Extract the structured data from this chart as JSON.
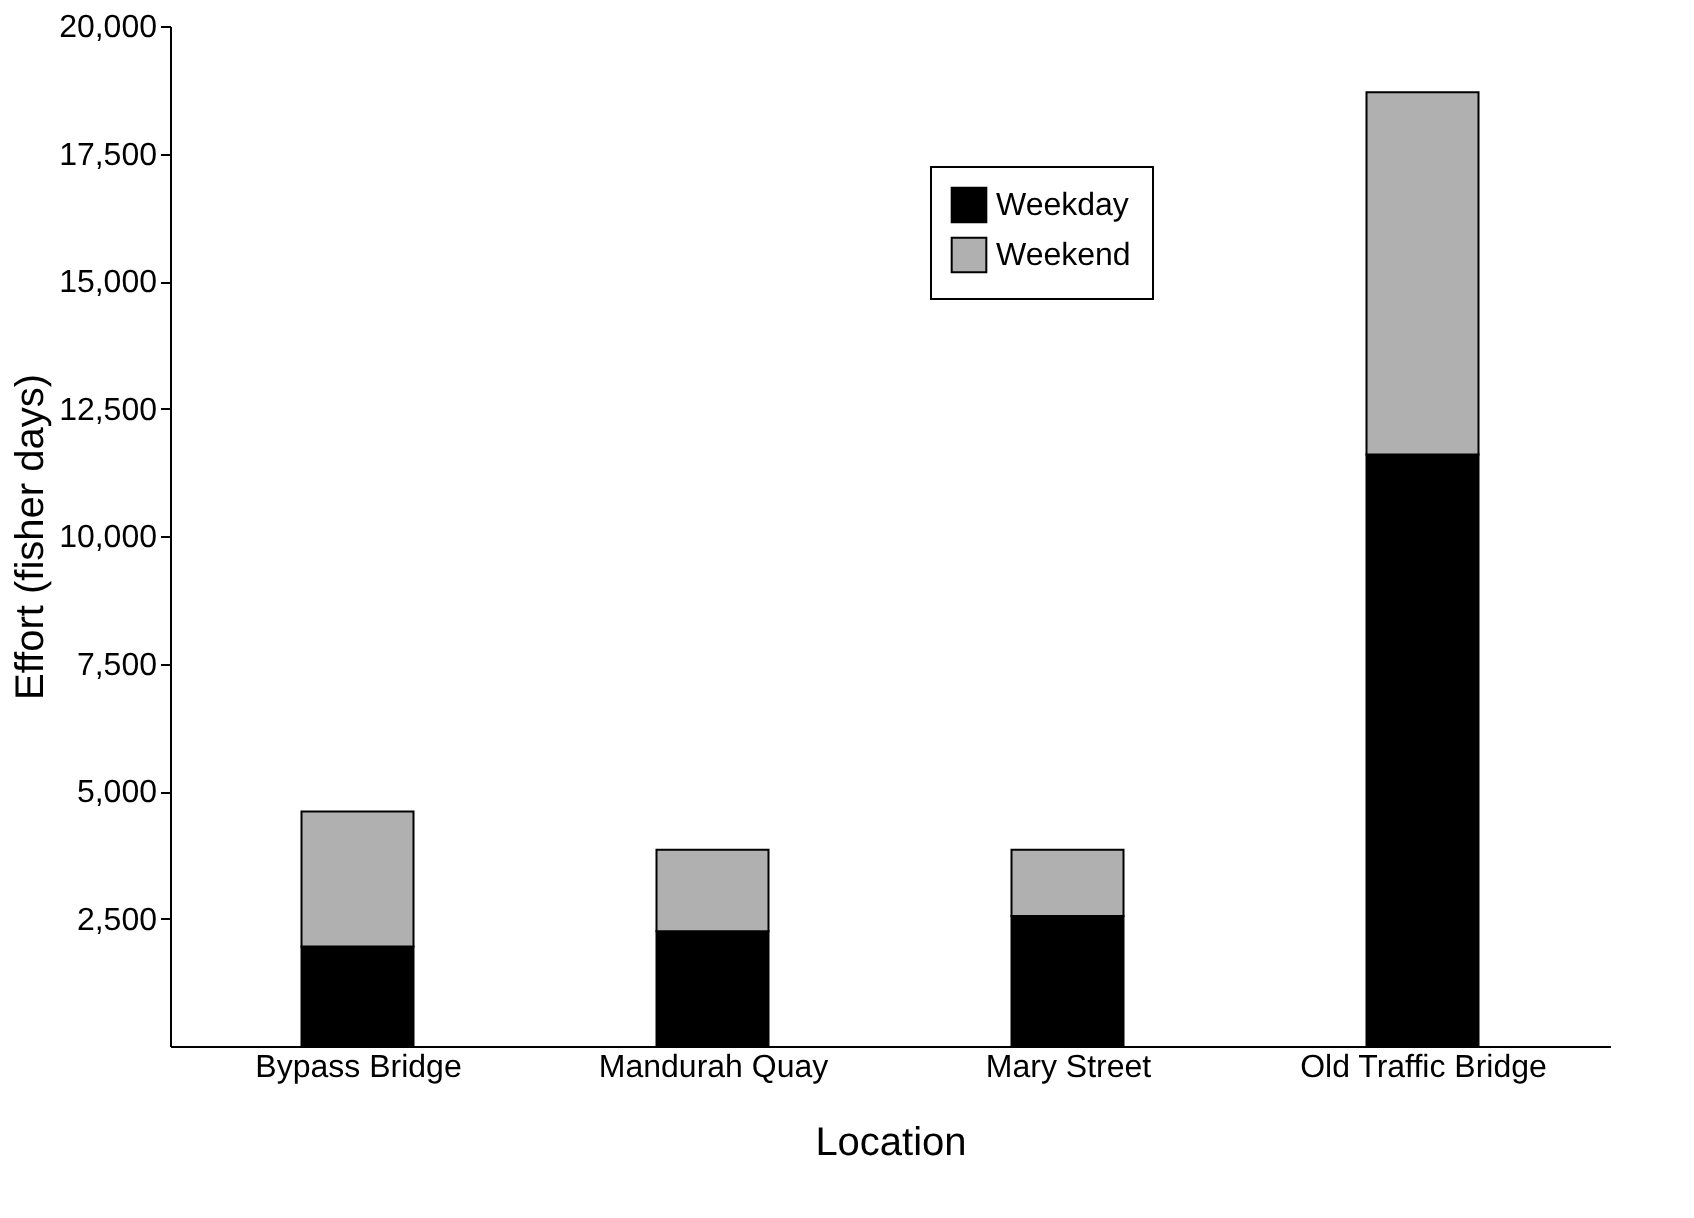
{
  "chart_data": {
    "type": "bar",
    "stacked": true,
    "xlabel": "Location",
    "ylabel": "Effort (fisher days)",
    "categories": [
      "Bypass Bridge",
      "Mandurah Quay",
      "Mary Street",
      "Old Traffic Bridge"
    ],
    "series": [
      {
        "name": "Weekday",
        "color": "#000000",
        "values": [
          1950,
          2250,
          2550,
          11600
        ]
      },
      {
        "name": "Weekend",
        "color": "#b0b0b0",
        "values": [
          2650,
          1600,
          1300,
          7100
        ]
      }
    ],
    "ylim": [
      0,
      20000
    ],
    "yticks": [
      {
        "value": 2500,
        "label": "2,500"
      },
      {
        "value": 5000,
        "label": "5,000"
      },
      {
        "value": 7500,
        "label": "7,500"
      },
      {
        "value": 10000,
        "label": "10,000"
      },
      {
        "value": 12500,
        "label": "12,500"
      },
      {
        "value": 15000,
        "label": "15,000"
      },
      {
        "value": 17500,
        "label": "17,500"
      },
      {
        "value": 20000,
        "label": "20,000"
      }
    ],
    "grid": false,
    "legend": "top right"
  }
}
